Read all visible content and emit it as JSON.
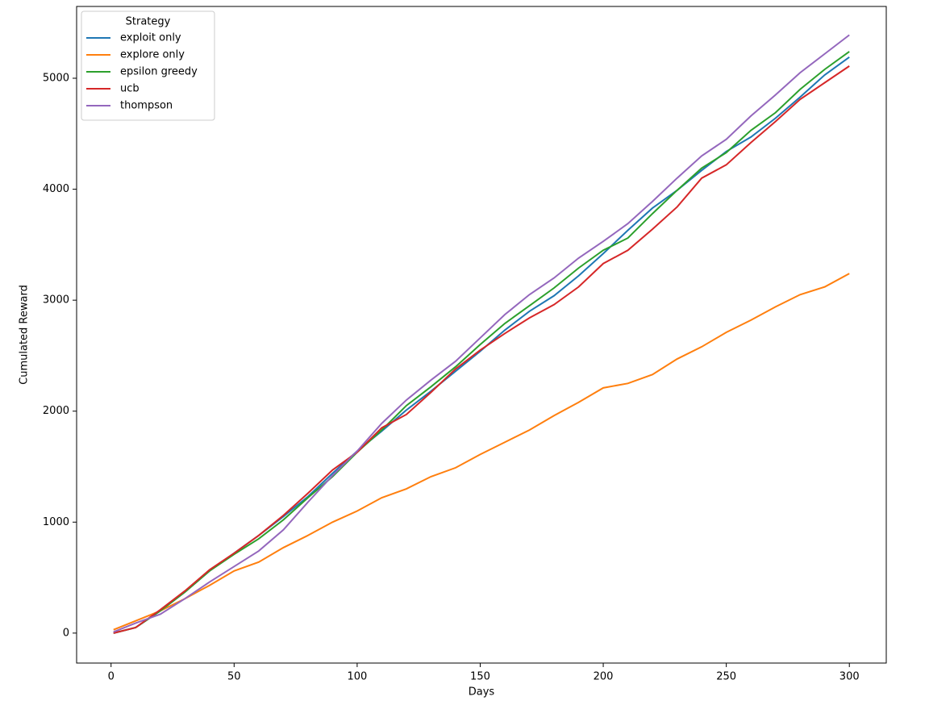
{
  "chart_data": {
    "type": "line",
    "x_label": "Days",
    "y_label": "Cumulated Reward",
    "legend_title": "Strategy",
    "legend_position": "upper-left",
    "x": [
      1,
      10,
      20,
      30,
      40,
      50,
      60,
      70,
      80,
      90,
      100,
      110,
      120,
      130,
      140,
      150,
      160,
      170,
      180,
      190,
      200,
      210,
      220,
      230,
      240,
      250,
      260,
      270,
      280,
      290,
      300
    ],
    "series": [
      {
        "name": "exploit only",
        "color": "#1f77b4",
        "values": [
          0,
          50,
          200,
          370,
          560,
          720,
          880,
          1050,
          1230,
          1440,
          1640,
          1820,
          2010,
          2180,
          2360,
          2540,
          2730,
          2900,
          3040,
          3220,
          3420,
          3630,
          3830,
          3990,
          4170,
          4340,
          4470,
          4640,
          4830,
          5030,
          5190
        ]
      },
      {
        "name": "explore only",
        "color": "#ff7f0e",
        "values": [
          30,
          110,
          200,
          310,
          430,
          560,
          640,
          770,
          880,
          1000,
          1100,
          1220,
          1300,
          1410,
          1490,
          1610,
          1720,
          1830,
          1960,
          2080,
          2210,
          2250,
          2330,
          2470,
          2580,
          2710,
          2820,
          2940,
          3050,
          3120,
          3240
        ]
      },
      {
        "name": "epsilon greedy",
        "color": "#2ca02c",
        "values": [
          0,
          50,
          200,
          370,
          560,
          710,
          850,
          1020,
          1220,
          1410,
          1630,
          1830,
          2050,
          2220,
          2400,
          2600,
          2790,
          2950,
          3110,
          3290,
          3450,
          3560,
          3780,
          3990,
          4190,
          4330,
          4530,
          4690,
          4900,
          5080,
          5240
        ]
      },
      {
        "name": "ucb",
        "color": "#d62728",
        "values": [
          0,
          50,
          210,
          380,
          570,
          720,
          880,
          1060,
          1260,
          1470,
          1630,
          1850,
          1970,
          2170,
          2380,
          2550,
          2700,
          2840,
          2960,
          3120,
          3330,
          3450,
          3640,
          3840,
          4100,
          4220,
          4420,
          4610,
          4810,
          4960,
          5110
        ]
      },
      {
        "name": "thompson",
        "color": "#9467bd",
        "values": [
          10,
          90,
          170,
          310,
          460,
          600,
          740,
          930,
          1180,
          1420,
          1640,
          1890,
          2100,
          2280,
          2450,
          2660,
          2870,
          3050,
          3200,
          3380,
          3530,
          3690,
          3890,
          4100,
          4300,
          4450,
          4660,
          4850,
          5050,
          5220,
          5390
        ]
      }
    ],
    "xlim": [
      -14,
      315
    ],
    "xticks": [
      0,
      50,
      100,
      150,
      200,
      250,
      300
    ],
    "ylim": [
      -270,
      5647
    ],
    "yticks": [
      0,
      1000,
      2000,
      3000,
      4000,
      5000
    ]
  }
}
